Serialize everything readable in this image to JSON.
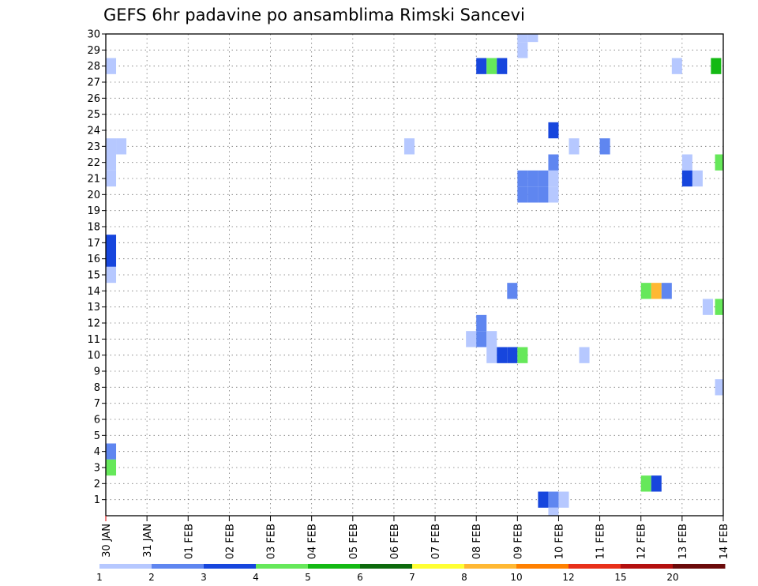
{
  "chart_data": {
    "type": "heatmap",
    "title": "GEFS 6hr padavine po ansamblima Rimski Sancevi",
    "x_tick_labels": [
      "30 JAN",
      "31 JAN",
      "01 FEB",
      "02 FEB",
      "03 FEB",
      "04 FEB",
      "05 FEB",
      "06 FEB",
      "07 FEB",
      "08 FEB",
      "09 FEB",
      "10 FEB",
      "11 FEB",
      "12 FEB",
      "13 FEB",
      "14 FEB"
    ],
    "y_tick_labels": [
      "1",
      "2",
      "3",
      "4",
      "5",
      "6",
      "7",
      "8",
      "9",
      "10",
      "11",
      "12",
      "13",
      "14",
      "15",
      "16",
      "17",
      "18",
      "19",
      "20",
      "21",
      "22",
      "23",
      "24",
      "25",
      "26",
      "27",
      "28",
      "29",
      "30"
    ],
    "x_unit": "6h step (4 per day)",
    "xlim": [
      0,
      60
    ],
    "ylim": [
      0,
      30
    ],
    "grid": true,
    "colorbar": {
      "labels": [
        "1",
        "2",
        "3",
        "4",
        "5",
        "6",
        "7",
        "8",
        "10",
        "12",
        "15",
        "20"
      ],
      "colors": [
        "#b6c8ff",
        "#5f86f0",
        "#1746dd",
        "#66e85a",
        "#14b914",
        "#0d6a0d",
        "#ffff33",
        "#ffb833",
        "#ff8000",
        "#e8301a",
        "#b4100f",
        "#6b0a0a"
      ]
    },
    "cells": [
      {
        "m": 28,
        "t": 0.5,
        "c": 0
      },
      {
        "m": 23,
        "t": 0.5,
        "c": 0
      },
      {
        "m": 23,
        "t": 1.5,
        "c": 0
      },
      {
        "m": 22,
        "t": 0.5,
        "c": 0
      },
      {
        "m": 21,
        "t": 0.5,
        "c": 0
      },
      {
        "m": 17,
        "t": 0.5,
        "c": 2
      },
      {
        "m": 16,
        "t": 0.5,
        "c": 2
      },
      {
        "m": 15,
        "t": 0.5,
        "c": 0
      },
      {
        "m": 4,
        "t": 0.5,
        "c": 1
      },
      {
        "m": 3,
        "t": 0.5,
        "c": 3
      },
      {
        "m": 23,
        "t": 29.5,
        "c": 0
      },
      {
        "m": 11,
        "t": 35.5,
        "c": 0
      },
      {
        "m": 11,
        "t": 36.5,
        "c": 1
      },
      {
        "m": 11,
        "t": 37.5,
        "c": 0
      },
      {
        "m": 12,
        "t": 36.5,
        "c": 1
      },
      {
        "m": 10,
        "t": 37.5,
        "c": 0
      },
      {
        "m": 10,
        "t": 38.5,
        "c": 2
      },
      {
        "m": 10,
        "t": 39.5,
        "c": 2
      },
      {
        "m": 10,
        "t": 40.5,
        "c": 3
      },
      {
        "m": 28,
        "t": 36.5,
        "c": 2
      },
      {
        "m": 28,
        "t": 37.5,
        "c": 3
      },
      {
        "m": 28,
        "t": 38.5,
        "c": 2
      },
      {
        "m": 14,
        "t": 39.5,
        "c": 1
      },
      {
        "m": 30,
        "t": 40.5,
        "c": 0
      },
      {
        "m": 30,
        "t": 41.5,
        "c": 0
      },
      {
        "m": 29,
        "t": 40.5,
        "c": 0
      },
      {
        "m": 20,
        "t": 40.5,
        "c": 1
      },
      {
        "m": 20,
        "t": 41.5,
        "c": 1
      },
      {
        "m": 20,
        "t": 42.5,
        "c": 1
      },
      {
        "m": 20,
        "t": 43.5,
        "c": 0
      },
      {
        "m": 21,
        "t": 40.5,
        "c": 1
      },
      {
        "m": 21,
        "t": 41.5,
        "c": 1
      },
      {
        "m": 21,
        "t": 42.5,
        "c": 1
      },
      {
        "m": 21,
        "t": 43.5,
        "c": 0
      },
      {
        "m": 22,
        "t": 43.5,
        "c": 1
      },
      {
        "m": 24,
        "t": 43.5,
        "c": 2
      },
      {
        "m": 1,
        "t": 42.5,
        "c": 2
      },
      {
        "m": 1,
        "t": 43.5,
        "c": 1
      },
      {
        "m": 1,
        "t": 44.5,
        "c": 0
      },
      {
        "m": 0,
        "t": 43.5,
        "c": 0
      },
      {
        "m": 23,
        "t": 45.5,
        "c": 0
      },
      {
        "m": 10,
        "t": 46.5,
        "c": 0
      },
      {
        "m": 23,
        "t": 48.5,
        "c": 1
      },
      {
        "m": 14,
        "t": 52.5,
        "c": 3
      },
      {
        "m": 14,
        "t": 53.5,
        "c": 7
      },
      {
        "m": 14,
        "t": 54.5,
        "c": 1
      },
      {
        "m": 2,
        "t": 52.5,
        "c": 3
      },
      {
        "m": 2,
        "t": 53.5,
        "c": 2
      },
      {
        "m": 28,
        "t": 55.5,
        "c": 0
      },
      {
        "m": 22,
        "t": 56.5,
        "c": 0
      },
      {
        "m": 21,
        "t": 56.5,
        "c": 2
      },
      {
        "m": 21,
        "t": 57.5,
        "c": 0
      },
      {
        "m": 28,
        "t": 59.3,
        "c": 4
      },
      {
        "m": 22,
        "t": 59.7,
        "c": 3
      },
      {
        "m": 13,
        "t": 58.5,
        "c": 0
      },
      {
        "m": 13,
        "t": 59.7,
        "c": 3
      },
      {
        "m": 8,
        "t": 59.7,
        "c": 0
      }
    ]
  }
}
